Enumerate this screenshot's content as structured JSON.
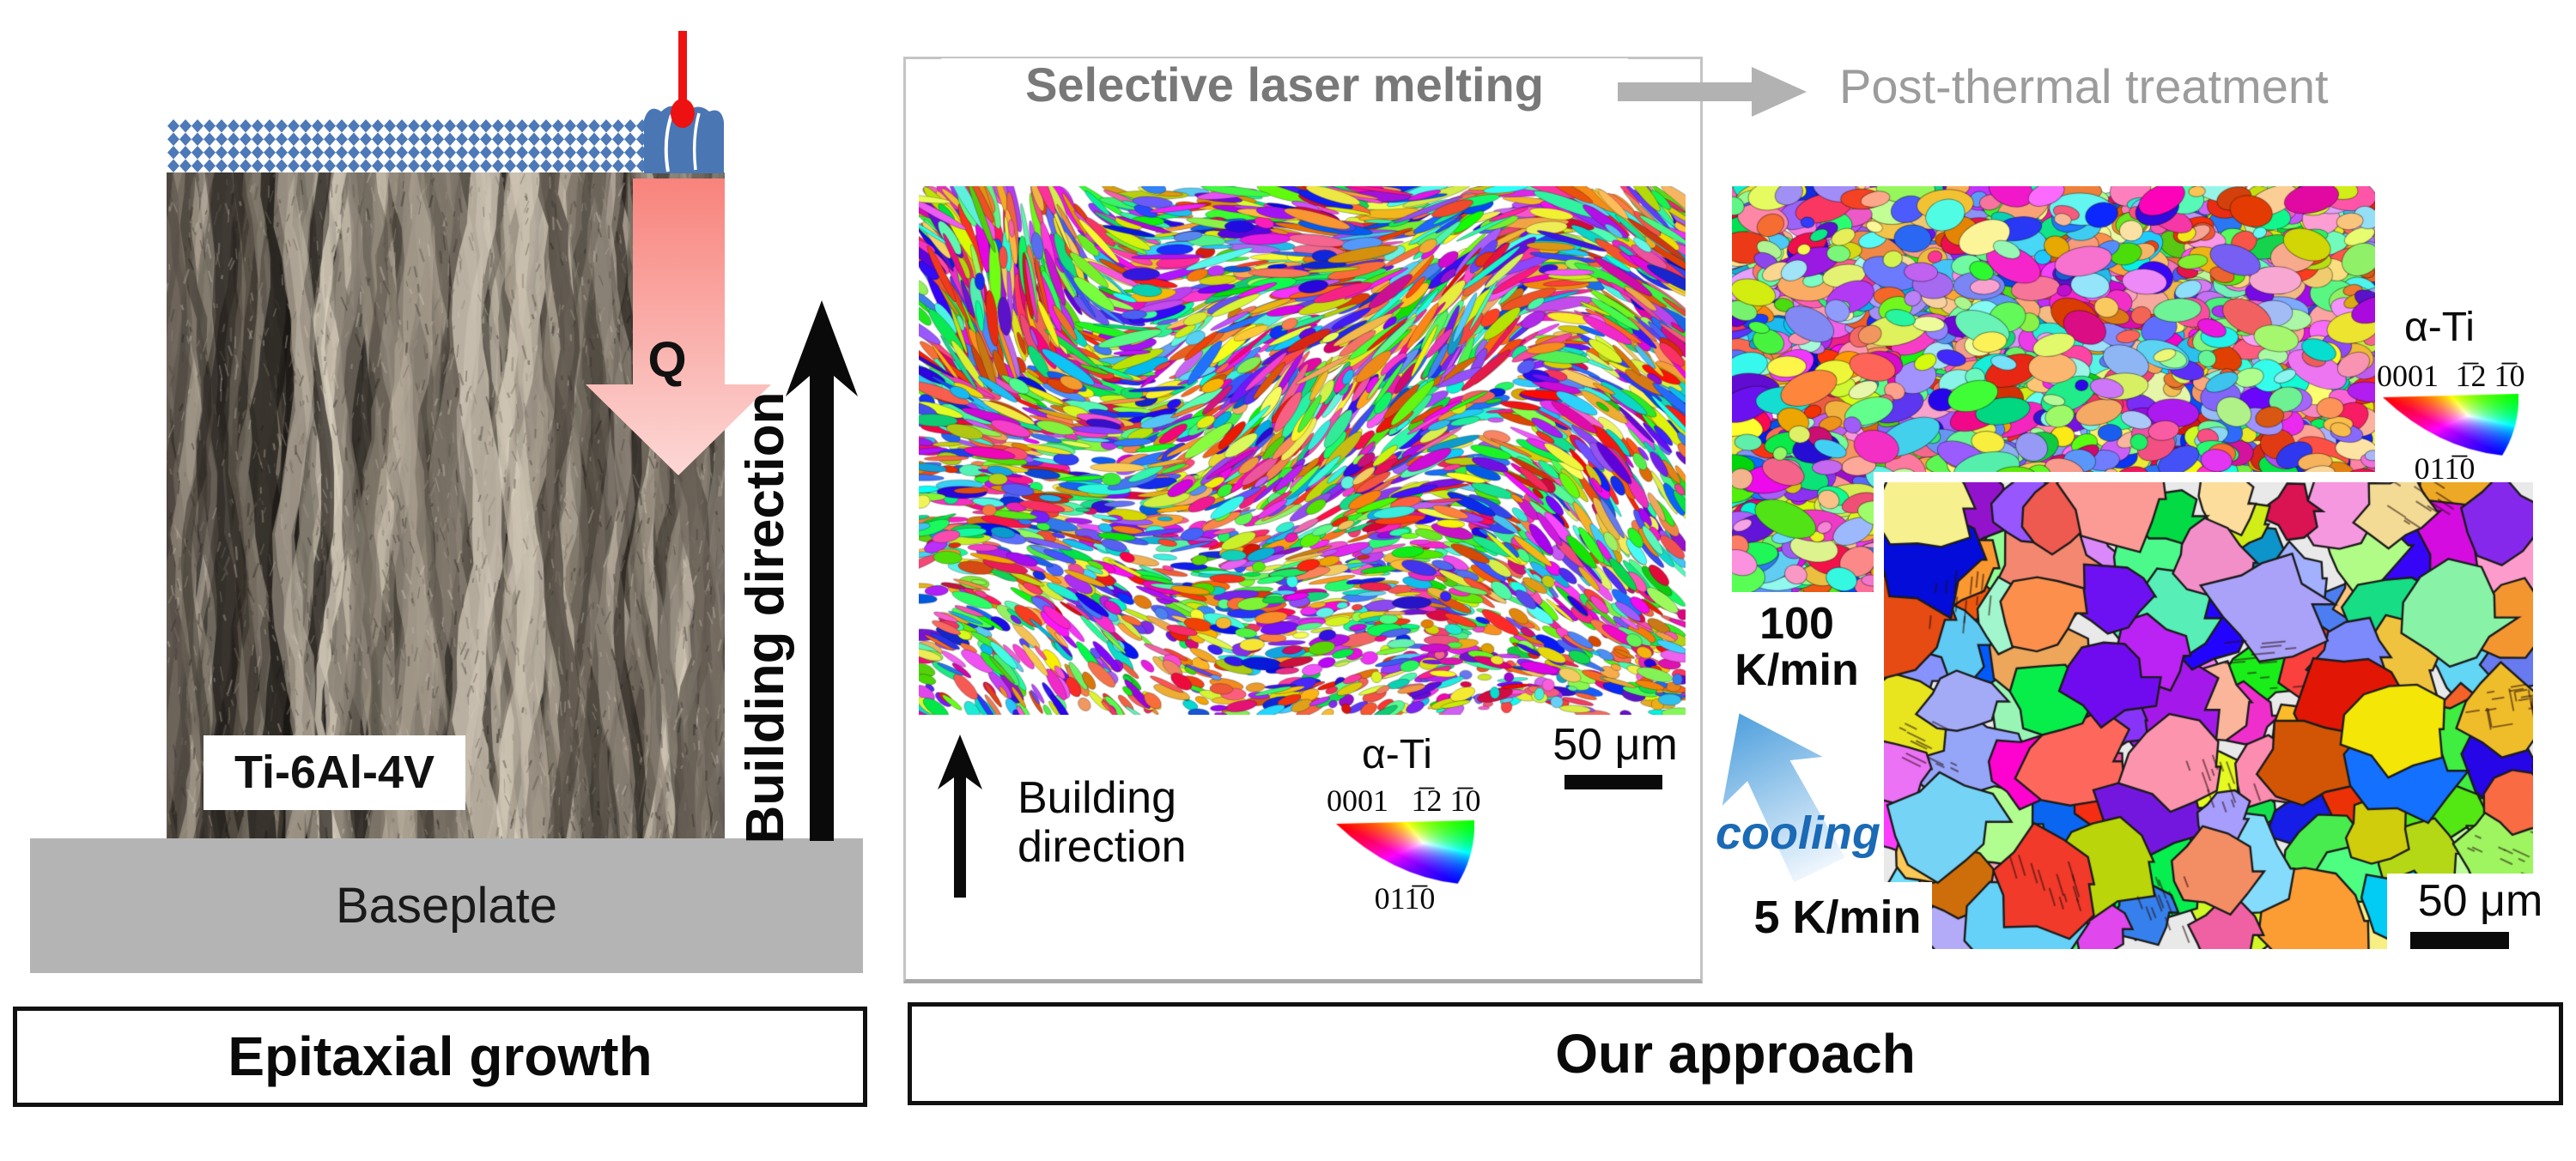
{
  "left": {
    "material_label": "Ti-6Al-4V",
    "baseplate_label": "Baseplate",
    "heat_flux_label": "Q",
    "building_direction_label": "Building direction",
    "caption": "Epitaxial growth"
  },
  "middle": {
    "heading": "Selective laser melting",
    "building_direction_line1": "Building",
    "building_direction_line2": "direction",
    "phase_label": "α-Ti",
    "ipf_top_left": "0001",
    "ipf_top_right": "1̅2 1̅0",
    "ipf_bottom": "011̅0",
    "scale_bar_label": "50 μm"
  },
  "right": {
    "heading": "Post-thermal treatment",
    "phase_label": "α-Ti",
    "ipf_top_left": "0001",
    "ipf_top_right": "1̅2 1̅0",
    "ipf_bottom": "011̅0",
    "rate_fast_line1": "100",
    "rate_fast_line2": "K/min",
    "rate_slow": "5 K/min",
    "cooling_label": "cooling",
    "scale_bar_label": "50 μm",
    "caption": "Our approach"
  },
  "colors": {
    "heading_primary": "#787878",
    "heading_secondary": "#9c9c9c",
    "heading_arrow": "#b2b2b2",
    "powder_blue": "#4d79b8",
    "melt_pool_blue": "#4a76b4",
    "laser_red": "#ee1111",
    "heat_arrow_start": "#f8837c",
    "heat_arrow_end": "#fcd8d6",
    "baseplate_gray": "#b4b4b4",
    "cooling_text_blue": "#1a6ab5",
    "cooling_arrow_blue": "#4fa0dd",
    "border_black": "#111111"
  }
}
